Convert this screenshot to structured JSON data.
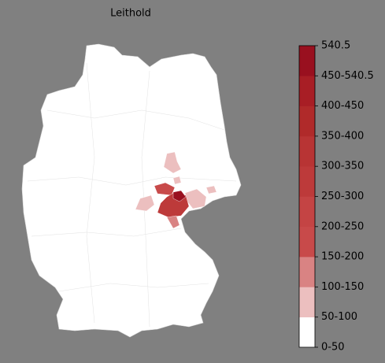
{
  "title": "Leithold",
  "colorbar": {
    "labels": [
      "0-50",
      "50-100",
      "100-150",
      "150-200",
      "200-250",
      "250-300",
      "300-350",
      "350-400",
      "400-450",
      "450-540.5",
      "540.5"
    ],
    "colors": [
      "#ffffff",
      "#ecbfbf",
      "#d98383",
      "#c84a4a",
      "#c44444",
      "#bd3a3a",
      "#b83434",
      "#b02a2a",
      "#a81e25",
      "#99101f"
    ]
  }
}
